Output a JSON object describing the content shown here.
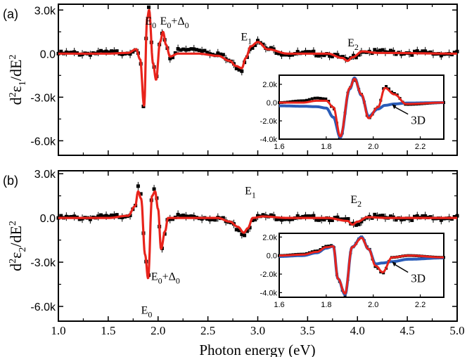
{
  "figure": {
    "xlabel": "Photon energy (eV)",
    "x_ticks": [
      "1.0",
      "1.5",
      "2.0",
      "2.5",
      "3.0",
      "3.5",
      "4.0",
      "4.5",
      "5.0"
    ]
  },
  "chart_data": [
    {
      "type": "line",
      "panel_label": "(a)",
      "ylabel_main": "d",
      "ylabel_sup1": "2",
      "ylabel_eps": "ε",
      "ylabel_sub": "1",
      "ylabel_tail": "/dE",
      "ylabel_sup2": "2",
      "xlim": [
        1.0,
        5.0
      ],
      "ylim": [
        -7000,
        3400
      ],
      "y_ticks": [
        "3.0k",
        "0.0",
        "-3.0k",
        "-6.0k"
      ],
      "y_tick_values": [
        3000,
        0,
        -3000,
        -6000
      ],
      "annotations": [
        {
          "base": "E",
          "sub": "0",
          "tail": "",
          "sub2": "",
          "x": 1.87,
          "y": 2000
        },
        {
          "base": "E",
          "sub": "0",
          "tail": "+Δ",
          "sub2": "0",
          "x": 2.02,
          "y": 2000
        },
        {
          "base": "E",
          "sub": "1",
          "tail": "",
          "sub2": "",
          "x": 2.83,
          "y": 900
        },
        {
          "base": "E",
          "sub": "2",
          "tail": "",
          "sub2": "",
          "x": 3.9,
          "y": 500
        }
      ],
      "series": [
        {
          "role": "experiment",
          "style": "black squares",
          "color": "#000000"
        },
        {
          "role": "fit",
          "style": "red line",
          "color": "#e8231b"
        }
      ],
      "x": [
        1.0,
        1.5,
        1.7,
        1.78,
        1.82,
        1.86,
        1.89,
        1.91,
        1.95,
        1.98,
        2.02,
        2.05,
        2.08,
        2.12,
        2.2,
        2.4,
        2.6,
        2.72,
        2.78,
        2.84,
        2.88,
        2.93,
        3.0,
        3.1,
        3.3,
        3.7,
        3.85,
        3.9,
        3.95,
        4.05,
        4.2,
        5.0
      ],
      "experiment": [
        0,
        50,
        100,
        350,
        -600,
        -3900,
        2600,
        3200,
        -800,
        -1900,
        900,
        1600,
        600,
        -250,
        200,
        300,
        0,
        -500,
        -900,
        -1100,
        -300,
        500,
        800,
        300,
        0,
        0,
        -300,
        -550,
        -250,
        200,
        100,
        0
      ],
      "fit": [
        0,
        0,
        50,
        300,
        -400,
        -3600,
        2400,
        3000,
        -700,
        -1800,
        800,
        1500,
        600,
        -200,
        0,
        0,
        -150,
        -500,
        -850,
        -1000,
        -300,
        500,
        800,
        300,
        0,
        0,
        -300,
        -500,
        -250,
        150,
        50,
        0
      ],
      "inset": {
        "xlim": [
          1.6,
          2.3
        ],
        "ylim": [
          -4000,
          3000
        ],
        "x_ticks": [
          "1.6",
          "1.8",
          "2.0",
          "2.2"
        ],
        "x_tick_values": [
          1.6,
          1.8,
          2.0,
          2.2
        ],
        "y_ticks": [
          "2.0k",
          "0.0",
          "-2.0k",
          "-4.0k"
        ],
        "y_tick_values": [
          2000,
          0,
          -2000,
          -4000
        ],
        "annotation": "3D",
        "x": [
          1.6,
          1.7,
          1.76,
          1.8,
          1.83,
          1.86,
          1.9,
          1.92,
          1.95,
          1.98,
          2.02,
          2.05,
          2.09,
          2.14,
          2.3
        ],
        "experiment": [
          0,
          200,
          500,
          400,
          -600,
          -3900,
          1600,
          2600,
          900,
          -1700,
          -500,
          1800,
          1000,
          -200,
          0
        ],
        "fit": [
          0,
          0,
          200,
          200,
          -500,
          -3700,
          1600,
          2600,
          900,
          -1700,
          -500,
          1600,
          900,
          -150,
          0
        ],
        "blue": [
          -350,
          -400,
          -450,
          -600,
          -1600,
          -3800,
          1500,
          2700,
          800,
          -1500,
          -700,
          -300,
          -150,
          -50,
          0
        ]
      }
    },
    {
      "type": "line",
      "panel_label": "(b)",
      "ylabel_main": "d",
      "ylabel_sup1": "2",
      "ylabel_eps": "ε",
      "ylabel_sub": "2",
      "ylabel_tail": "/dE",
      "ylabel_sup2": "2",
      "xlim": [
        1.0,
        5.0
      ],
      "ylim": [
        -7000,
        3200
      ],
      "y_ticks": [
        "3.0k",
        "0.0",
        "-3.0k",
        "-6.0k"
      ],
      "y_tick_values": [
        3000,
        0,
        -3000,
        -6000
      ],
      "annotations": [
        {
          "base": "E",
          "sub": "0",
          "tail": "",
          "sub2": "",
          "x": 1.83,
          "y": -6500
        },
        {
          "base": "E",
          "sub": "0",
          "tail": "+Δ",
          "sub2": "0",
          "x": 1.93,
          "y": -4200
        },
        {
          "base": "E",
          "sub": "1",
          "tail": "",
          "sub2": "",
          "x": 2.87,
          "y": 1600
        },
        {
          "base": "E",
          "sub": "2",
          "tail": "",
          "sub2": "",
          "x": 3.93,
          "y": 1000
        }
      ],
      "series": [
        {
          "role": "experiment",
          "style": "black squares",
          "color": "#000000"
        },
        {
          "role": "fit",
          "style": "red line",
          "color": "#e8231b"
        }
      ],
      "x": [
        1.0,
        1.5,
        1.7,
        1.77,
        1.8,
        1.83,
        1.87,
        1.9,
        1.94,
        1.97,
        2.0,
        2.03,
        2.07,
        2.1,
        2.2,
        2.6,
        2.72,
        2.8,
        2.86,
        2.9,
        2.95,
        3.05,
        3.3,
        3.7,
        3.9,
        3.95,
        4.0,
        4.1,
        4.3,
        5.0
      ],
      "experiment": [
        0,
        50,
        200,
        900,
        2000,
        1500,
        -2600,
        -4300,
        1500,
        1900,
        700,
        -2200,
        -1000,
        0,
        100,
        0,
        -300,
        -700,
        -1100,
        -800,
        0,
        100,
        0,
        0,
        -200,
        -500,
        -300,
        100,
        0,
        0
      ],
      "fit": [
        0,
        0,
        150,
        800,
        1800,
        1300,
        -2500,
        -4100,
        1500,
        1800,
        600,
        -2100,
        -900,
        0,
        0,
        0,
        -250,
        -600,
        -1000,
        -700,
        0,
        100,
        0,
        0,
        -200,
        -450,
        -250,
        50,
        0,
        0
      ],
      "inset": {
        "xlim": [
          1.6,
          2.3
        ],
        "ylim": [
          -4500,
          2400
        ],
        "x_ticks": [
          "1.6",
          "1.8",
          "2.0",
          "2.2"
        ],
        "x_tick_values": [
          1.6,
          1.8,
          2.0,
          2.2
        ],
        "y_ticks": [
          "2.0k",
          "0.0",
          "-2.0k",
          "-4.0k"
        ],
        "y_tick_values": [
          2000,
          0,
          -2000,
          -4000
        ],
        "annotation": "3D",
        "x": [
          1.6,
          1.7,
          1.76,
          1.8,
          1.83,
          1.85,
          1.88,
          1.91,
          1.95,
          1.98,
          2.01,
          2.04,
          2.08,
          2.15,
          2.3
        ],
        "experiment": [
          0,
          150,
          500,
          1000,
          1100,
          -2600,
          -4300,
          900,
          2000,
          800,
          -1200,
          -1900,
          -200,
          0,
          -200
        ],
        "fit": [
          0,
          100,
          400,
          900,
          1000,
          -2500,
          -4100,
          900,
          1900,
          700,
          -1100,
          -1800,
          -200,
          0,
          -200
        ],
        "blue": [
          -100,
          0,
          300,
          800,
          1000,
          -2500,
          -4200,
          900,
          2000,
          700,
          -900,
          -800,
          -650,
          -400,
          -250
        ]
      }
    }
  ]
}
